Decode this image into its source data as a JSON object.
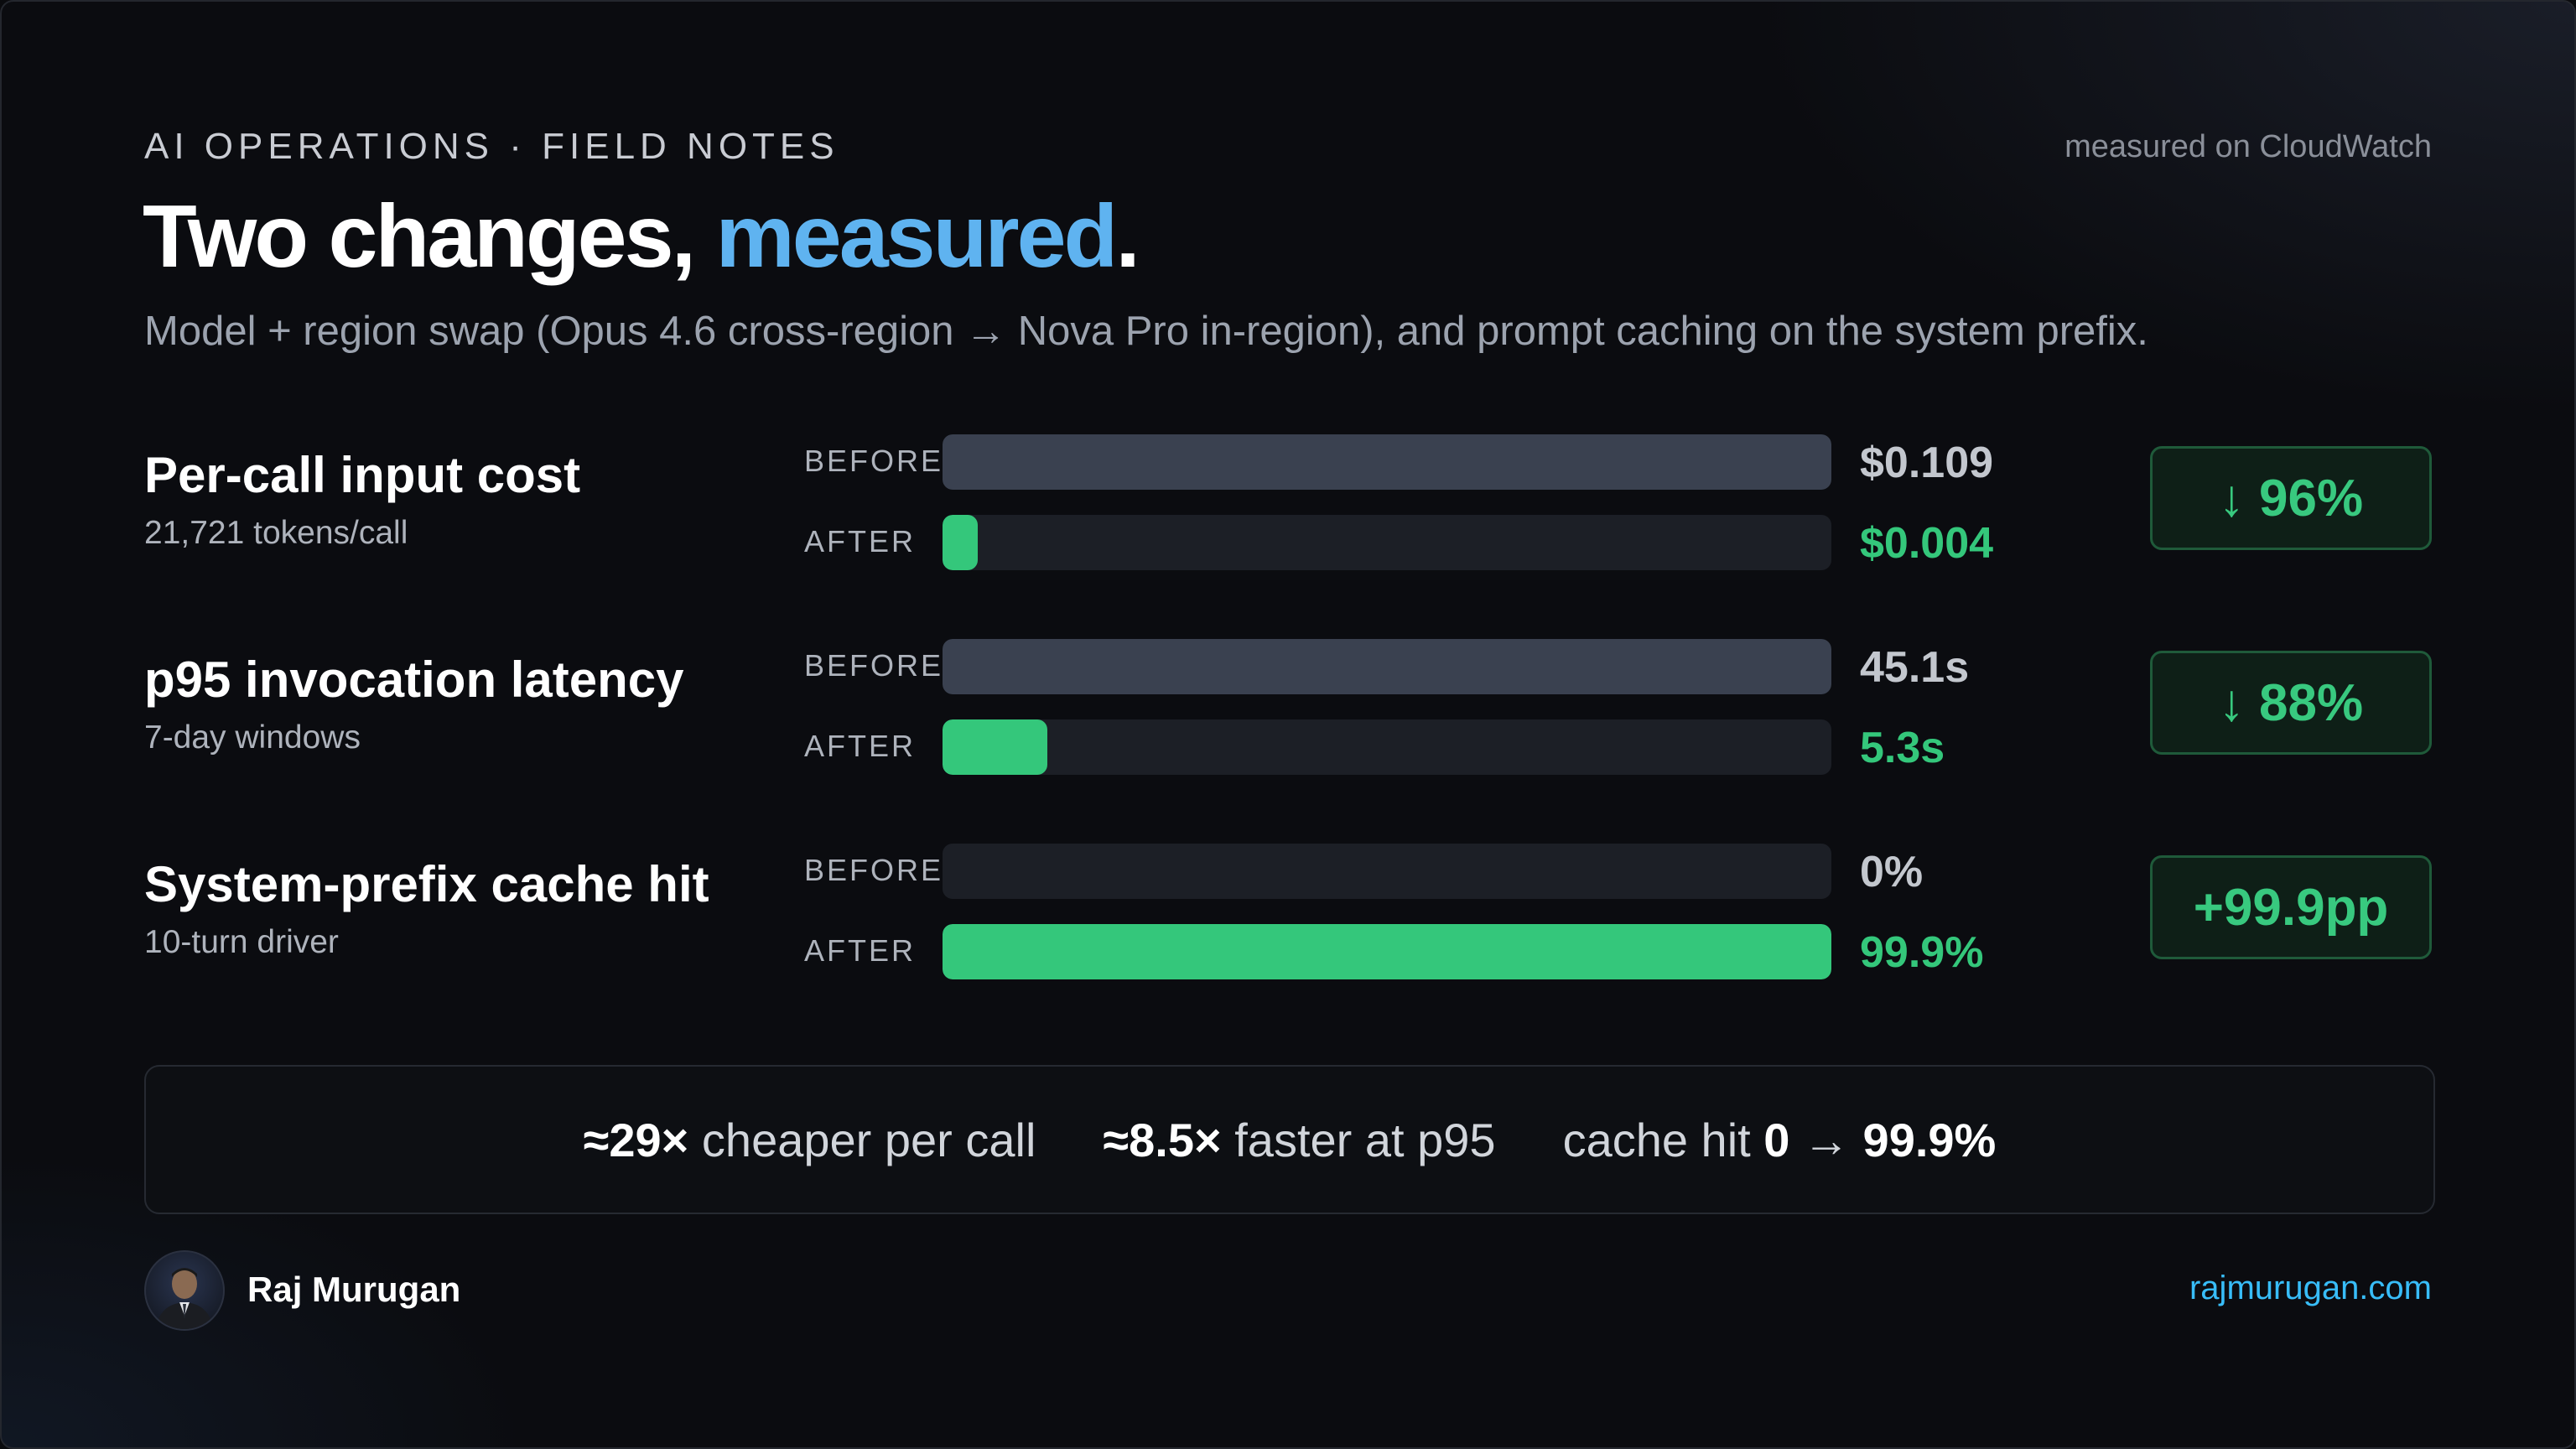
{
  "header": {
    "eyebrow": "AI OPERATIONS · FIELD NOTES",
    "source": "measured on CloudWatch",
    "title_main": "Two changes, ",
    "title_accent": "measured",
    "title_end": ".",
    "subtitle": "Model + region swap (Opus 4.6 cross-region → Nova Pro in-region), and prompt caching on the system prefix."
  },
  "labels": {
    "before": "BEFORE",
    "after": "AFTER"
  },
  "chart_data": {
    "type": "bar",
    "orientation": "horizontal",
    "groups": [
      {
        "title": "Per-call input cost",
        "subtitle": "21,721 tokens/call",
        "before_value": 0.109,
        "after_value": 0.004,
        "before_label": "$0.109",
        "after_label": "$0.004",
        "change": "↓ 96%"
      },
      {
        "title": "p95 invocation latency",
        "subtitle": "7-day windows",
        "before_value": 45.1,
        "after_value": 5.3,
        "before_label": "45.1s",
        "after_label": "5.3s",
        "change": "↓ 88%"
      },
      {
        "title": "System-prefix cache hit",
        "subtitle": "10-turn driver",
        "before_value": 0,
        "after_value": 99.9,
        "before_label": "0%",
        "after_label": "99.9%",
        "change": "+99.9pp"
      }
    ],
    "colors": {
      "before": "#3a4150",
      "after": "#34c77b",
      "track": "#1c1f26"
    }
  },
  "summary": {
    "cost_strong": "≈29×",
    "cost_text": " cheaper per call",
    "speed_strong": "≈8.5×",
    "speed_text": " faster at p95",
    "cache_text": "cache hit ",
    "cache_from": "0",
    "cache_arrow": " → ",
    "cache_to": "99.9%"
  },
  "footer": {
    "author": "Raj Murugan",
    "site": "rajmurugan.com"
  },
  "colors": {
    "accent_blue": "#5fb3f0",
    "accent_green": "#34c77b",
    "link": "#38bdf8",
    "background": "#0b0c10"
  }
}
